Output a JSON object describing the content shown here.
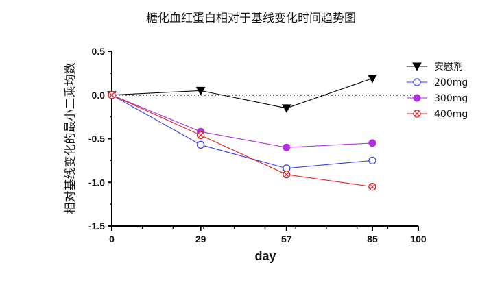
{
  "chart_data": {
    "type": "line",
    "title": "糖化血红蛋白相对于基线变化时间趋势图",
    "xlabel": "day",
    "ylabel": "相对基线变化的最小二乘均数",
    "xlim": [
      0,
      100
    ],
    "ylim": [
      -1.5,
      0.5
    ],
    "xticks": [
      0,
      29,
      57,
      85,
      100
    ],
    "yticks": [
      0.5,
      0.0,
      -0.5,
      -1.0,
      -1.5
    ],
    "xtick_labels": [
      "0",
      "29",
      "57",
      "85",
      "100"
    ],
    "ytick_labels": [
      "0.5",
      "0.0",
      "-0.5",
      "-1.0",
      "-1.5"
    ],
    "x": [
      0,
      29,
      57,
      85
    ],
    "reference_line": {
      "y": 0,
      "style": "dotted"
    },
    "legend_position": "top-right",
    "series": [
      {
        "name": "安慰剂",
        "values": [
          0.0,
          0.05,
          -0.15,
          0.19
        ],
        "color": "#000000",
        "marker": "triangle-down-filled"
      },
      {
        "name": "200mg",
        "values": [
          0.0,
          -0.57,
          -0.84,
          -0.75
        ],
        "color": "#3b3bf0",
        "marker": "circle-open"
      },
      {
        "name": "300mg",
        "values": [
          0.0,
          -0.42,
          -0.6,
          -0.55
        ],
        "color": "#b030e0",
        "marker": "circle-filled"
      },
      {
        "name": "400mg",
        "values": [
          0.0,
          -0.46,
          -0.91,
          -1.05
        ],
        "color": "#e02020",
        "marker": "circle-x"
      }
    ]
  }
}
